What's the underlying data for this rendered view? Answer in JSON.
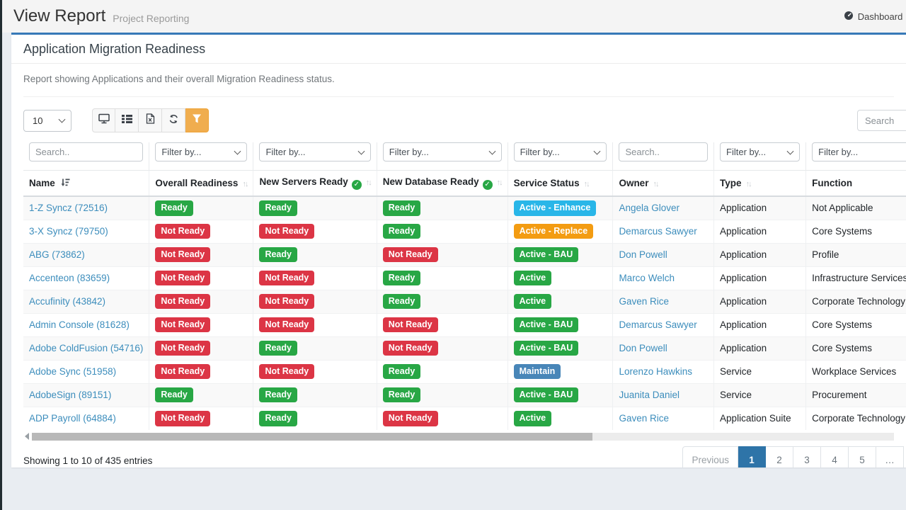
{
  "colors": {
    "accent_blue": "#3779b8",
    "link": "#3c8dbc",
    "ready": "#28a745",
    "not_ready": "#dc3545",
    "filter_button": "#f0ad4e",
    "pagination_active": "#2e74a8",
    "status": {
      "Active - Enhance": "#29b6e8",
      "Active - Replace": "#f39c12",
      "Active - BAU": "#28a745",
      "Active": "#28a745",
      "Maintain": "#4886b8"
    }
  },
  "header": {
    "title": "View Report",
    "subtitle": "Project Reporting",
    "breadcrumb": {
      "icon": "tachometer-icon",
      "label": "Dashboard",
      "chevron": "›"
    }
  },
  "card": {
    "title": "Application Migration Readiness",
    "description": "Report showing Applications and their overall Migration Readiness status."
  },
  "toolbar": {
    "page_length_value": "10",
    "buttons": [
      {
        "name": "display-view",
        "icon": "desktop-icon"
      },
      {
        "name": "column-visibility",
        "icon": "list-icon"
      },
      {
        "name": "export-excel",
        "icon": "excel-file-icon"
      },
      {
        "name": "refresh",
        "icon": "refresh-icon"
      },
      {
        "name": "filter",
        "icon": "filter-icon",
        "active": true
      }
    ],
    "search_placeholder": "Search"
  },
  "table": {
    "columns": [
      {
        "key": "name",
        "label": "Name",
        "filter": "search",
        "filter_placeholder": "Search..",
        "sort": "active",
        "check": false,
        "width": 164
      },
      {
        "key": "overall",
        "label": "Overall Readiness",
        "filter": "select",
        "filter_placeholder": "Filter by...",
        "sort": "both",
        "check": false,
        "width": 134
      },
      {
        "key": "servers",
        "label": "New Servers Ready",
        "filter": "select",
        "filter_placeholder": "Filter by...",
        "sort": "both",
        "check": true,
        "width": 153
      },
      {
        "key": "database",
        "label": "New Database Ready",
        "filter": "select",
        "filter_placeholder": "Filter by...",
        "sort": "both",
        "check": true,
        "width": 158
      },
      {
        "key": "status",
        "label": "Service Status",
        "filter": "select",
        "filter_placeholder": "Filter by...",
        "sort": "both",
        "check": false,
        "width": 168
      },
      {
        "key": "owner",
        "label": "Owner",
        "filter": "search",
        "filter_placeholder": "Search..",
        "sort": "both",
        "check": false,
        "width": 162
      },
      {
        "key": "type",
        "label": "Type",
        "filter": "select",
        "filter_placeholder": "Filter by...",
        "sort": "both",
        "check": false,
        "width": 146
      },
      {
        "key": "function",
        "label": "Function",
        "filter": "select",
        "filter_placeholder": "Filter by...",
        "sort": "none",
        "check": false,
        "width": 190
      }
    ],
    "rows": [
      {
        "name": "1-Z Syncz (72516)",
        "overall": "Ready",
        "servers": "Ready",
        "database": "Ready",
        "status": "Active - Enhance",
        "owner": "Angela Glover",
        "type": "Application",
        "function": "Not Applicable"
      },
      {
        "name": "3-X Syncz (79750)",
        "overall": "Not Ready",
        "servers": "Not Ready",
        "database": "Ready",
        "status": "Active - Replace",
        "owner": "Demarcus Sawyer",
        "type": "Application",
        "function": "Core Systems"
      },
      {
        "name": "ABG (73862)",
        "overall": "Not Ready",
        "servers": "Ready",
        "database": "Not Ready",
        "status": "Active - BAU",
        "owner": "Don Powell",
        "type": "Application",
        "function": "Profile"
      },
      {
        "name": "Accenteon (83659)",
        "overall": "Not Ready",
        "servers": "Not Ready",
        "database": "Ready",
        "status": "Active",
        "owner": "Marco Welch",
        "type": "Application",
        "function": "Infrastructure Services"
      },
      {
        "name": "Accufinity (43842)",
        "overall": "Not Ready",
        "servers": "Not Ready",
        "database": "Ready",
        "status": "Active",
        "owner": "Gaven Rice",
        "type": "Application",
        "function": "Corporate Technology"
      },
      {
        "name": "Admin Console (81628)",
        "overall": "Not Ready",
        "servers": "Not Ready",
        "database": "Not Ready",
        "status": "Active - BAU",
        "owner": "Demarcus Sawyer",
        "type": "Application",
        "function": "Core Systems"
      },
      {
        "name": "Adobe ColdFusion (54716)",
        "overall": "Not Ready",
        "servers": "Ready",
        "database": "Not Ready",
        "status": "Active - BAU",
        "owner": "Don Powell",
        "type": "Application",
        "function": "Core Systems"
      },
      {
        "name": "Adobe Sync (51958)",
        "overall": "Not Ready",
        "servers": "Not Ready",
        "database": "Ready",
        "status": "Maintain",
        "owner": "Lorenzo Hawkins",
        "type": "Service",
        "function": "Workplace Services"
      },
      {
        "name": "AdobeSign (89151)",
        "overall": "Ready",
        "servers": "Ready",
        "database": "Ready",
        "status": "Active - BAU",
        "owner": "Juanita Daniel",
        "type": "Service",
        "function": "Procurement"
      },
      {
        "name": "ADP Payroll (64884)",
        "overall": "Not Ready",
        "servers": "Ready",
        "database": "Not Ready",
        "status": "Active",
        "owner": "Gaven Rice",
        "type": "Application Suite",
        "function": "Corporate Technology"
      }
    ]
  },
  "footer": {
    "summary": "Showing 1 to 10 of 435 entries",
    "pagination": {
      "items": [
        "Previous",
        "1",
        "2",
        "3",
        "4",
        "5",
        "…"
      ],
      "active": "1"
    }
  }
}
